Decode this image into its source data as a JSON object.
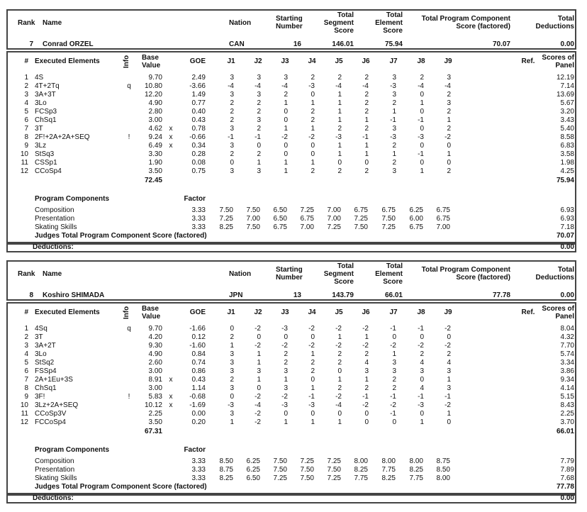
{
  "labels": {
    "rank": "Rank",
    "name": "Name",
    "nation": "Nation",
    "starting_number": [
      "Starting",
      "Number"
    ],
    "total_segment_score": [
      "Total",
      "Segment",
      "Score"
    ],
    "total_element_score": [
      "Total",
      "Element",
      "Score"
    ],
    "total_pcs": [
      "Total Program Component",
      "Score (factored)"
    ],
    "total_deductions": [
      "Total",
      "Deductions"
    ],
    "num": "#",
    "executed_elements": "Executed Elements",
    "info": "Info",
    "base_value": [
      "Base",
      "Value"
    ],
    "goe": "GOE",
    "judges": [
      "J1",
      "J2",
      "J3",
      "J4",
      "J5",
      "J6",
      "J7",
      "J8",
      "J9"
    ],
    "ref": "Ref.",
    "scores_of_panel": [
      "Scores of",
      "Panel"
    ],
    "program_components": "Program Components",
    "factor": "Factor",
    "judges_total_pcs": "Judges Total Program Component Score (factored)",
    "deductions": "Deductions:"
  },
  "skaters": [
    {
      "rank": "7",
      "name": "Conrad ORZEL",
      "nation": "CAN",
      "starting_number": "16",
      "total_segment_score": "146.01",
      "total_element_score": "75.94",
      "total_pcs": "70.07",
      "total_deductions": "0.00",
      "elements": [
        {
          "num": "1",
          "element": "4S",
          "info": "",
          "base_value": "9.70",
          "bonus": "",
          "goe": "2.49",
          "judges": [
            "3",
            "3",
            "3",
            "2",
            "2",
            "2",
            "3",
            "2",
            "3"
          ],
          "score": "12.19"
        },
        {
          "num": "2",
          "element": "4T+2Tq",
          "info": "q",
          "base_value": "10.80",
          "bonus": "",
          "goe": "-3.66",
          "judges": [
            "-4",
            "-4",
            "-4",
            "-3",
            "-4",
            "-4",
            "-3",
            "-4",
            "-4"
          ],
          "score": "7.14"
        },
        {
          "num": "3",
          "element": "3A+3T",
          "info": "",
          "base_value": "12.20",
          "bonus": "",
          "goe": "1.49",
          "judges": [
            "3",
            "3",
            "2",
            "0",
            "1",
            "2",
            "3",
            "0",
            "2"
          ],
          "score": "13.69"
        },
        {
          "num": "4",
          "element": "3Lo",
          "info": "",
          "base_value": "4.90",
          "bonus": "",
          "goe": "0.77",
          "judges": [
            "2",
            "2",
            "1",
            "1",
            "1",
            "2",
            "2",
            "1",
            "3"
          ],
          "score": "5.67"
        },
        {
          "num": "5",
          "element": "FCSp3",
          "info": "",
          "base_value": "2.80",
          "bonus": "",
          "goe": "0.40",
          "judges": [
            "2",
            "2",
            "0",
            "2",
            "1",
            "2",
            "1",
            "0",
            "2"
          ],
          "score": "3.20"
        },
        {
          "num": "6",
          "element": "ChSq1",
          "info": "",
          "base_value": "3.00",
          "bonus": "",
          "goe": "0.43",
          "judges": [
            "2",
            "3",
            "0",
            "2",
            "1",
            "1",
            "-1",
            "-1",
            "1"
          ],
          "score": "3.43"
        },
        {
          "num": "7",
          "element": "3T",
          "info": "",
          "base_value": "4.62",
          "bonus": "x",
          "goe": "0.78",
          "judges": [
            "3",
            "2",
            "1",
            "1",
            "2",
            "2",
            "3",
            "0",
            "2"
          ],
          "score": "5.40"
        },
        {
          "num": "8",
          "element": "2F!+2A+2A+SEQ",
          "info": "!",
          "base_value": "9.24",
          "bonus": "x",
          "goe": "-0.66",
          "judges": [
            "-1",
            "-1",
            "-2",
            "-2",
            "-3",
            "-1",
            "-3",
            "-3",
            "-2"
          ],
          "score": "8.58"
        },
        {
          "num": "9",
          "element": "3Lz",
          "info": "",
          "base_value": "6.49",
          "bonus": "x",
          "goe": "0.34",
          "judges": [
            "3",
            "0",
            "0",
            "0",
            "1",
            "1",
            "2",
            "0",
            "0"
          ],
          "score": "6.83"
        },
        {
          "num": "10",
          "element": "StSq3",
          "info": "",
          "base_value": "3.30",
          "bonus": "",
          "goe": "0.28",
          "judges": [
            "2",
            "2",
            "0",
            "0",
            "1",
            "1",
            "1",
            "-1",
            "1"
          ],
          "score": "3.58"
        },
        {
          "num": "11",
          "element": "CSSp1",
          "info": "",
          "base_value": "1.90",
          "bonus": "",
          "goe": "0.08",
          "judges": [
            "0",
            "1",
            "1",
            "1",
            "0",
            "0",
            "2",
            "0",
            "0"
          ],
          "score": "1.98"
        },
        {
          "num": "12",
          "element": "CCoSp4",
          "info": "",
          "base_value": "3.50",
          "bonus": "",
          "goe": "0.75",
          "judges": [
            "3",
            "3",
            "1",
            "2",
            "2",
            "2",
            "3",
            "1",
            "2"
          ],
          "score": "4.25"
        }
      ],
      "base_value_total": "72.45",
      "element_score_total": "75.94",
      "components": [
        {
          "name": "Composition",
          "factor": "3.33",
          "judges": [
            "7.50",
            "7.50",
            "6.50",
            "7.25",
            "7.00",
            "6.75",
            "6.75",
            "6.25",
            "6.75"
          ],
          "score": "6.93"
        },
        {
          "name": "Presentation",
          "factor": "3.33",
          "judges": [
            "7.25",
            "7.00",
            "6.50",
            "6.75",
            "7.00",
            "7.25",
            "7.50",
            "6.00",
            "6.75"
          ],
          "score": "6.93"
        },
        {
          "name": "Skating Skills",
          "factor": "3.33",
          "judges": [
            "8.25",
            "7.50",
            "6.75",
            "7.00",
            "7.25",
            "7.50",
            "7.25",
            "6.75",
            "7.00"
          ],
          "score": "7.18"
        }
      ],
      "judges_total_pcs": "70.07",
      "deductions": "0.00"
    },
    {
      "rank": "8",
      "name": "Koshiro SHIMADA",
      "nation": "JPN",
      "starting_number": "13",
      "total_segment_score": "143.79",
      "total_element_score": "66.01",
      "total_pcs": "77.78",
      "total_deductions": "0.00",
      "elements": [
        {
          "num": "1",
          "element": "4Sq",
          "info": "q",
          "base_value": "9.70",
          "bonus": "",
          "goe": "-1.66",
          "judges": [
            "0",
            "-2",
            "-3",
            "-2",
            "-2",
            "-2",
            "-1",
            "-1",
            "-2"
          ],
          "score": "8.04"
        },
        {
          "num": "2",
          "element": "3T",
          "info": "",
          "base_value": "4.20",
          "bonus": "",
          "goe": "0.12",
          "judges": [
            "2",
            "0",
            "0",
            "0",
            "1",
            "1",
            "0",
            "0",
            "0"
          ],
          "score": "4.32"
        },
        {
          "num": "3",
          "element": "3A+2T",
          "info": "",
          "base_value": "9.30",
          "bonus": "",
          "goe": "-1.60",
          "judges": [
            "1",
            "-2",
            "-2",
            "-2",
            "-2",
            "-2",
            "-2",
            "-2",
            "-2"
          ],
          "score": "7.70"
        },
        {
          "num": "4",
          "element": "3Lo",
          "info": "",
          "base_value": "4.90",
          "bonus": "",
          "goe": "0.84",
          "judges": [
            "3",
            "1",
            "2",
            "1",
            "2",
            "2",
            "1",
            "2",
            "2"
          ],
          "score": "5.74"
        },
        {
          "num": "5",
          "element": "StSq2",
          "info": "",
          "base_value": "2.60",
          "bonus": "",
          "goe": "0.74",
          "judges": [
            "3",
            "1",
            "2",
            "2",
            "2",
            "4",
            "3",
            "4",
            "4"
          ],
          "score": "3.34"
        },
        {
          "num": "6",
          "element": "FSSp4",
          "info": "",
          "base_value": "3.00",
          "bonus": "",
          "goe": "0.86",
          "judges": [
            "3",
            "3",
            "3",
            "2",
            "0",
            "3",
            "3",
            "3",
            "3"
          ],
          "score": "3.86"
        },
        {
          "num": "7",
          "element": "2A+1Eu+3S",
          "info": "",
          "base_value": "8.91",
          "bonus": "x",
          "goe": "0.43",
          "judges": [
            "2",
            "1",
            "1",
            "0",
            "1",
            "1",
            "2",
            "0",
            "1"
          ],
          "score": "9.34"
        },
        {
          "num": "8",
          "element": "ChSq1",
          "info": "",
          "base_value": "3.00",
          "bonus": "",
          "goe": "1.14",
          "judges": [
            "3",
            "0",
            "3",
            "1",
            "2",
            "2",
            "2",
            "4",
            "3"
          ],
          "score": "4.14"
        },
        {
          "num": "9",
          "element": "3F!",
          "info": "!",
          "base_value": "5.83",
          "bonus": "x",
          "goe": "-0.68",
          "judges": [
            "0",
            "-2",
            "-2",
            "-1",
            "-2",
            "-1",
            "-1",
            "-1",
            "-1"
          ],
          "score": "5.15"
        },
        {
          "num": "10",
          "element": "3Lz+2A+SEQ",
          "info": "",
          "base_value": "10.12",
          "bonus": "x",
          "goe": "-1.69",
          "judges": [
            "-3",
            "-4",
            "-3",
            "-3",
            "-4",
            "-2",
            "-2",
            "-3",
            "-2"
          ],
          "score": "8.43"
        },
        {
          "num": "11",
          "element": "CCoSp3V",
          "info": "",
          "base_value": "2.25",
          "bonus": "",
          "goe": "0.00",
          "judges": [
            "3",
            "-2",
            "0",
            "0",
            "0",
            "0",
            "-1",
            "0",
            "1"
          ],
          "score": "2.25"
        },
        {
          "num": "12",
          "element": "FCCoSp4",
          "info": "",
          "base_value": "3.50",
          "bonus": "",
          "goe": "0.20",
          "judges": [
            "1",
            "-2",
            "1",
            "1",
            "1",
            "0",
            "0",
            "1",
            "0"
          ],
          "score": "3.70"
        }
      ],
      "base_value_total": "67.31",
      "element_score_total": "66.01",
      "components": [
        {
          "name": "Composition",
          "factor": "3.33",
          "judges": [
            "8.50",
            "6.25",
            "7.50",
            "7.25",
            "7.25",
            "8.00",
            "8.00",
            "8.00",
            "8.75"
          ],
          "score": "7.79"
        },
        {
          "name": "Presentation",
          "factor": "3.33",
          "judges": [
            "8.75",
            "6.25",
            "7.50",
            "7.50",
            "7.50",
            "8.25",
            "7.75",
            "8.25",
            "8.50"
          ],
          "score": "7.89"
        },
        {
          "name": "Skating Skills",
          "factor": "3.33",
          "judges": [
            "8.25",
            "6.50",
            "7.25",
            "7.50",
            "7.25",
            "7.75",
            "8.25",
            "7.75",
            "8.00"
          ],
          "score": "7.68"
        }
      ],
      "judges_total_pcs": "77.78",
      "deductions": "0.00"
    }
  ]
}
